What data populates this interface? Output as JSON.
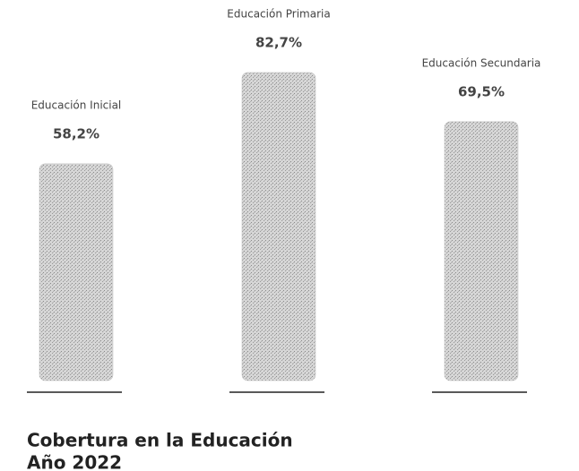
{
  "chart_data": {
    "type": "bar",
    "title": "Cobertura en la Educación",
    "subtitle": "Año 2022",
    "categories": [
      "Educación Inicial",
      "Educación Primaria",
      "Educación Secundaria"
    ],
    "values": [
      58.2,
      82.7,
      69.5
    ],
    "value_labels": [
      "58,2%",
      "82,7%",
      "69,5%"
    ],
    "color": "#bdbdbd"
  }
}
